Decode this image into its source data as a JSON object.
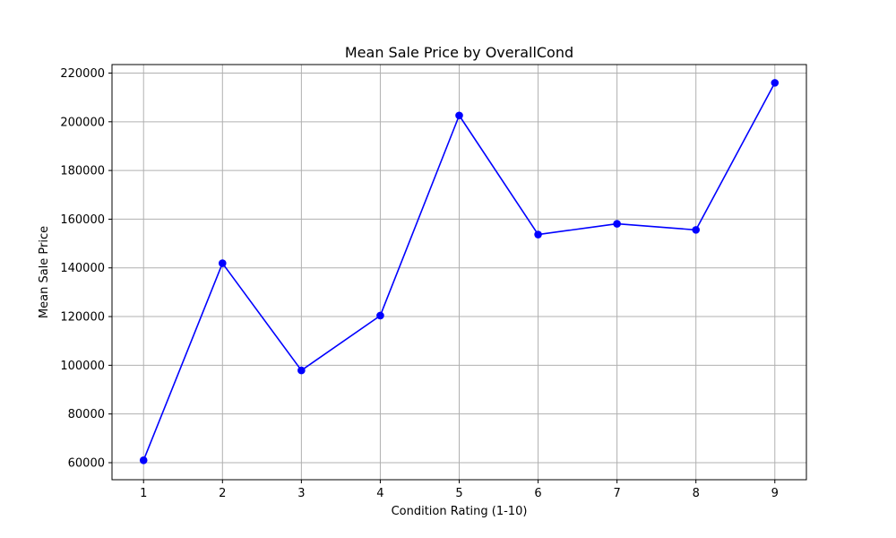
{
  "chart_data": {
    "type": "line",
    "title": "Mean Sale Price by OverallCond",
    "xlabel": "Condition Rating (1-10)",
    "ylabel": "Mean Sale Price",
    "x": [
      1,
      2,
      3,
      4,
      5,
      6,
      7,
      8,
      9
    ],
    "series": [
      {
        "values": [
          61000,
          141900,
          97900,
          120400,
          202600,
          153700,
          158100,
          155600,
          216000
        ],
        "color": "#0000ff",
        "marker": "circle"
      }
    ],
    "xlim": [
      0.6,
      9.4
    ],
    "ylim": [
      53000,
      223500
    ],
    "xticks": [
      "1",
      "2",
      "3",
      "4",
      "5",
      "6",
      "7",
      "8",
      "9"
    ],
    "yticks": [
      "60000",
      "80000",
      "100000",
      "120000",
      "140000",
      "160000",
      "180000",
      "200000",
      "220000"
    ],
    "grid": true
  }
}
